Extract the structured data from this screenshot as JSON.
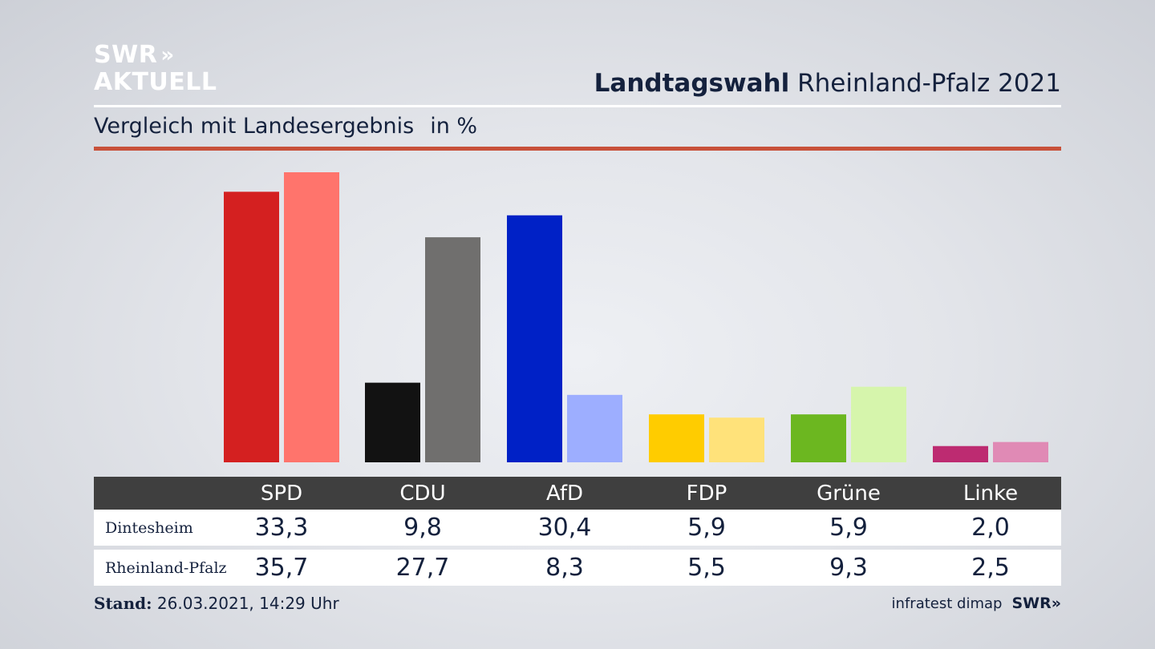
{
  "logo": {
    "line1": "SWR",
    "arrows": "»",
    "line2": "AKTUELL"
  },
  "header": {
    "title_bold": "Landtagswahl",
    "title_rest": "Rheinland-Pfalz 2021"
  },
  "subheader": {
    "text": "Vergleich mit Landesergebnis",
    "unit": "in %"
  },
  "colors": {
    "accent_rule": "#c8513a",
    "table_header": "#3f3f3f"
  },
  "chart_data": {
    "type": "bar",
    "categories": [
      "SPD",
      "CDU",
      "AfD",
      "FDP",
      "Grüne",
      "Linke"
    ],
    "series": [
      {
        "name": "Dintesheim",
        "values": [
          33.3,
          9.8,
          30.4,
          5.9,
          5.9,
          2.0
        ],
        "colors": [
          "#d42020",
          "#121212",
          "#0021c6",
          "#ffcc00",
          "#6cb720",
          "#bd2b71"
        ]
      },
      {
        "name": "Rheinland-Pfalz",
        "values": [
          35.7,
          27.7,
          8.3,
          5.5,
          9.3,
          2.5
        ],
        "colors": [
          "#ff746c",
          "#706f6e",
          "#9daeff",
          "#ffe27a",
          "#d6f5ac",
          "#e08ab5"
        ]
      }
    ],
    "ylim": [
      0,
      35.7
    ],
    "grid": false
  },
  "table": {
    "headers": [
      "SPD",
      "CDU",
      "AfD",
      "FDP",
      "Grüne",
      "Linke"
    ],
    "rows": [
      {
        "label": "Dintesheim",
        "values": [
          "33,3",
          "9,8",
          "30,4",
          "5,9",
          "5,9",
          "2,0"
        ]
      },
      {
        "label": "Rheinland-Pfalz",
        "values": [
          "35,7",
          "27,7",
          "8,3",
          "5,5",
          "9,3",
          "2,5"
        ]
      }
    ]
  },
  "footer": {
    "stand_label": "Stand:",
    "stand_value": "26.03.2021, 14:29 Uhr",
    "source": "infratest dimap",
    "brand": "SWR",
    "brand_arrows": "»"
  }
}
